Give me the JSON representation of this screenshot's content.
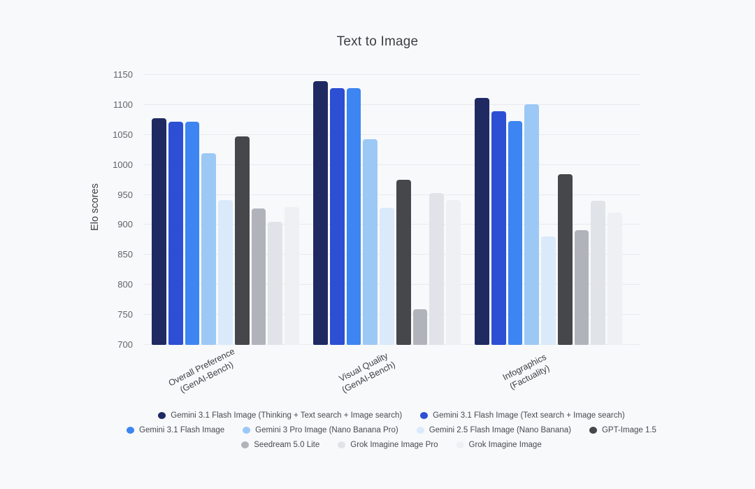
{
  "page": {
    "background": "#f8f9fb"
  },
  "chart_data": {
    "type": "bar",
    "title": "Text to Image",
    "xlabel": "",
    "ylabel": "Elo scores",
    "ylim": [
      700,
      1150
    ],
    "yticks": [
      1150,
      1100,
      1050,
      1000,
      950,
      900,
      850,
      800,
      750,
      700
    ],
    "grid": "horizontal",
    "legend_position": "bottom",
    "categories": [
      [
        "Overall Preference",
        "(GenAI-Bench)"
      ],
      [
        "Visual Quality",
        "(GenAI-Bench)"
      ],
      [
        "Infographics",
        "(Factuality)"
      ]
    ],
    "series": [
      {
        "name": "Gemini 3.1 Flash Image (Thinking + Text search + Image search)",
        "color": "#1f2a63",
        "values": [
          1078,
          1139,
          1112
        ]
      },
      {
        "name": "Gemini 3.1 Flash Image (Text search + Image search)",
        "color": "#2d4fd4",
        "values": [
          1072,
          1128,
          1090
        ]
      },
      {
        "name": "Gemini 3.1 Flash Image",
        "color": "#3c85f2",
        "values": [
          1072,
          1128,
          1073
        ]
      },
      {
        "name": "Gemini 3 Pro Image (Nano Banana Pro)",
        "color": "#9cc8f5",
        "values": [
          1020,
          1043,
          1101
        ]
      },
      {
        "name": "Gemini 2.5 Flash Image (Nano Banana)",
        "color": "#dbeafa",
        "values": [
          941,
          929,
          881
        ]
      },
      {
        "name": "GPT-Image 1.5",
        "color": "#45474b",
        "values": [
          1047,
          975,
          984
        ]
      },
      {
        "name": "Seedream 5.0 Lite",
        "color": "#b0b4ba",
        "values": [
          927,
          760,
          891
        ]
      },
      {
        "name": "Grok Imagine Image Pro",
        "color": "#e0e3e8",
        "values": [
          905,
          953,
          940
        ]
      },
      {
        "name": "Grok Imagine Image",
        "color": "#eef0f4",
        "values": [
          930,
          941,
          920
        ]
      }
    ],
    "legend_rows": [
      [
        0,
        1
      ],
      [
        2,
        3,
        4,
        5
      ],
      [
        6,
        7,
        8
      ]
    ]
  }
}
